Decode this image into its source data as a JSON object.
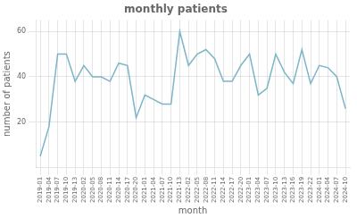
{
  "chart_data": {
    "type": "line",
    "title": "monthly patients",
    "x_label": "month",
    "y_label": "number of patients",
    "categories": [
      "2019-01",
      "2019-04",
      "2019-07",
      "2019-10",
      "2019-13",
      "2020-02",
      "2020-05",
      "2020-08",
      "2020-11",
      "2020-14",
      "2020-17",
      "2020-20",
      "2021-01",
      "2021-04",
      "2021-07",
      "2021-10",
      "2021-13",
      "2022-02",
      "2022-05",
      "2022-08",
      "2022-11",
      "2022-14",
      "2022-17",
      "2022-20",
      "2023-01",
      "2023-04",
      "2023-07",
      "2023-10",
      "2023-13",
      "2023-16",
      "2023-19",
      "2023-22",
      "2024-01",
      "2024-04",
      "2024-07",
      "2024-10"
    ],
    "values": [
      5,
      18,
      50,
      50,
      38,
      45,
      40,
      40,
      38,
      46,
      45,
      22,
      32,
      30,
      28,
      28,
      60,
      45,
      50,
      52,
      48,
      38,
      38,
      45,
      50,
      32,
      35,
      50,
      42,
      37,
      52,
      37,
      45,
      44,
      40,
      26
    ],
    "color": "#7ab5c8",
    "ylim": [
      0,
      65
    ],
    "yticks": [
      20,
      40,
      60
    ],
    "grid": true
  }
}
